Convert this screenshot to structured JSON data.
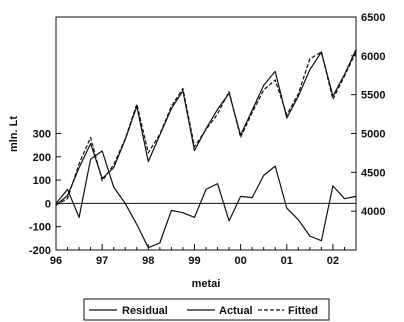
{
  "chart_data": {
    "type": "line",
    "xlabel": "metai",
    "ylabel_left": "mln. Lt",
    "ylabel_right": "",
    "x_range": [
      1996,
      2002.5
    ],
    "x_tick_labels": [
      "96",
      "97",
      "98",
      "99",
      "00",
      "01",
      "02"
    ],
    "x_ticks": [
      1996,
      1997,
      1998,
      1999,
      2000,
      2001,
      2002
    ],
    "left_axis": {
      "range": [
        -200,
        800
      ],
      "ticks": [
        -200,
        -100,
        0,
        100,
        200,
        300
      ],
      "tick_labels": [
        "-200",
        "-100",
        "0",
        "100",
        "200",
        "300"
      ]
    },
    "right_axis": {
      "range": [
        3500,
        6500
      ],
      "ticks": [
        4000,
        4500,
        5000,
        5500,
        6000,
        6500
      ],
      "tick_labels": [
        "4000",
        "4500",
        "5000",
        "5500",
        "6000",
        "6500"
      ]
    },
    "x": [
      1996.0,
      1996.25,
      1996.5,
      1996.75,
      1997.0,
      1997.25,
      1997.5,
      1997.75,
      1998.0,
      1998.25,
      1998.5,
      1998.75,
      1999.0,
      1999.25,
      1999.5,
      1999.75,
      2000.0,
      2000.25,
      2000.5,
      2000.75,
      2001.0,
      2001.25,
      2001.5,
      2001.75,
      2002.0,
      2002.25,
      2002.5
    ],
    "series": [
      {
        "name": "Residual",
        "axis": "left",
        "style": "solid",
        "values": [
          0,
          60,
          -60,
          190,
          225,
          70,
          0,
          -90,
          -190,
          -170,
          -30,
          -40,
          -60,
          60,
          85,
          -75,
          30,
          25,
          120,
          160,
          -20,
          -70,
          -140,
          -160,
          75,
          20,
          30
        ]
      },
      {
        "name": "Actual",
        "axis": "right",
        "style": "solid",
        "values": [
          4080,
          4200,
          4560,
          4870,
          4420,
          4560,
          4920,
          5350,
          4640,
          4980,
          5320,
          5550,
          4780,
          5060,
          5310,
          5520,
          4980,
          5300,
          5620,
          5800,
          5200,
          5480,
          5820,
          6050,
          5480,
          5760,
          6080
        ]
      },
      {
        "name": "Fitted",
        "axis": "right",
        "style": "dashed",
        "values": [
          4080,
          4160,
          4610,
          4950,
          4390,
          4600,
          4930,
          5380,
          4750,
          4990,
          5350,
          5580,
          4830,
          5050,
          5250,
          5540,
          4950,
          5270,
          5560,
          5690,
          5240,
          5510,
          5960,
          6050,
          5440,
          5740,
          6050
        ]
      }
    ],
    "zero_line": true,
    "legend_position": "bottom"
  }
}
